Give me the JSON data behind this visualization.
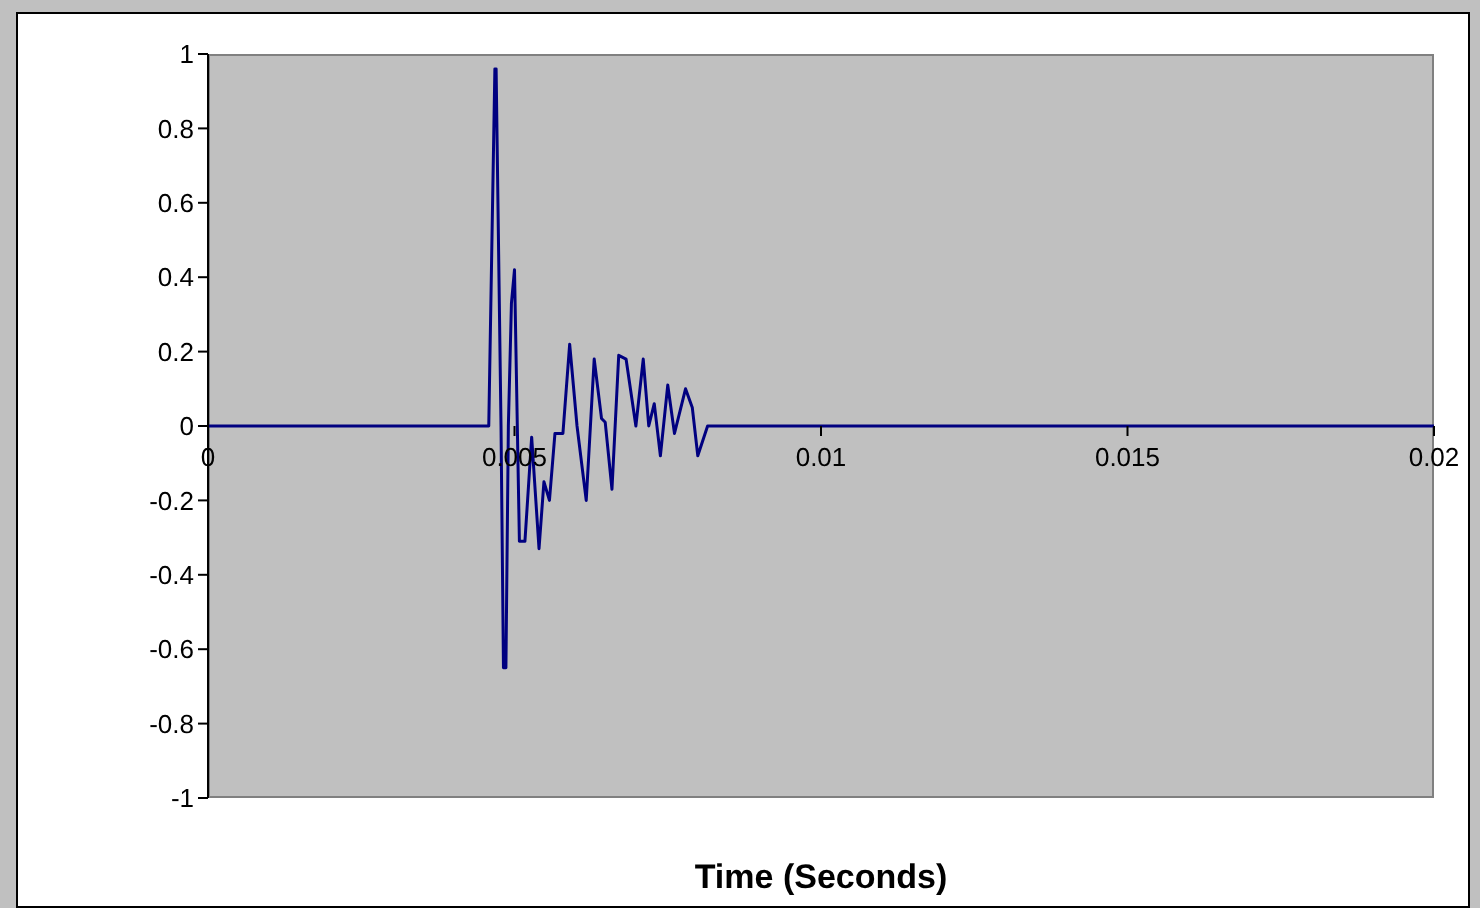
{
  "chart_data": {
    "type": "line",
    "xlabel": "Time (Seconds)",
    "series": [
      {
        "color": "#000080",
        "x": [
          0,
          0.00458,
          0.00468,
          0.0047,
          0.00478,
          0.00482,
          0.00486,
          0.0049,
          0.00495,
          0.005,
          0.00508,
          0.00517,
          0.00528,
          0.0054,
          0.00548,
          0.00557,
          0.00566,
          0.00579,
          0.0059,
          0.00602,
          0.00617,
          0.0063,
          0.00642,
          0.00648,
          0.00659,
          0.0067,
          0.00682,
          0.00698,
          0.0071,
          0.00719,
          0.00728,
          0.00738,
          0.0075,
          0.00761,
          0.00779,
          0.0079,
          0.00799,
          0.00815,
          0.02
        ],
        "values": [
          0,
          0,
          0.96,
          0.96,
          0,
          -0.65,
          -0.65,
          0,
          0.33,
          0.42,
          -0.31,
          -0.31,
          -0.03,
          -0.33,
          -0.15,
          -0.2,
          -0.02,
          -0.02,
          0.22,
          0,
          -0.2,
          0.18,
          0.02,
          0.01,
          -0.17,
          0.19,
          0.18,
          0,
          0.18,
          0,
          0.06,
          -0.08,
          0.11,
          -0.02,
          0.1,
          0.05,
          -0.08,
          0,
          0
        ]
      }
    ],
    "xlim": [
      0,
      0.02
    ],
    "xticks": [
      0,
      0.005,
      0.01,
      0.015,
      0.02
    ],
    "ylim": [
      -1,
      1
    ],
    "yticks": [
      -1,
      -0.8,
      -0.6,
      -0.4,
      -0.2,
      0,
      0.2,
      0.4,
      0.6,
      0.8,
      1
    ],
    "grid": false,
    "legend": false,
    "marker": "none",
    "line_style": "solid"
  }
}
